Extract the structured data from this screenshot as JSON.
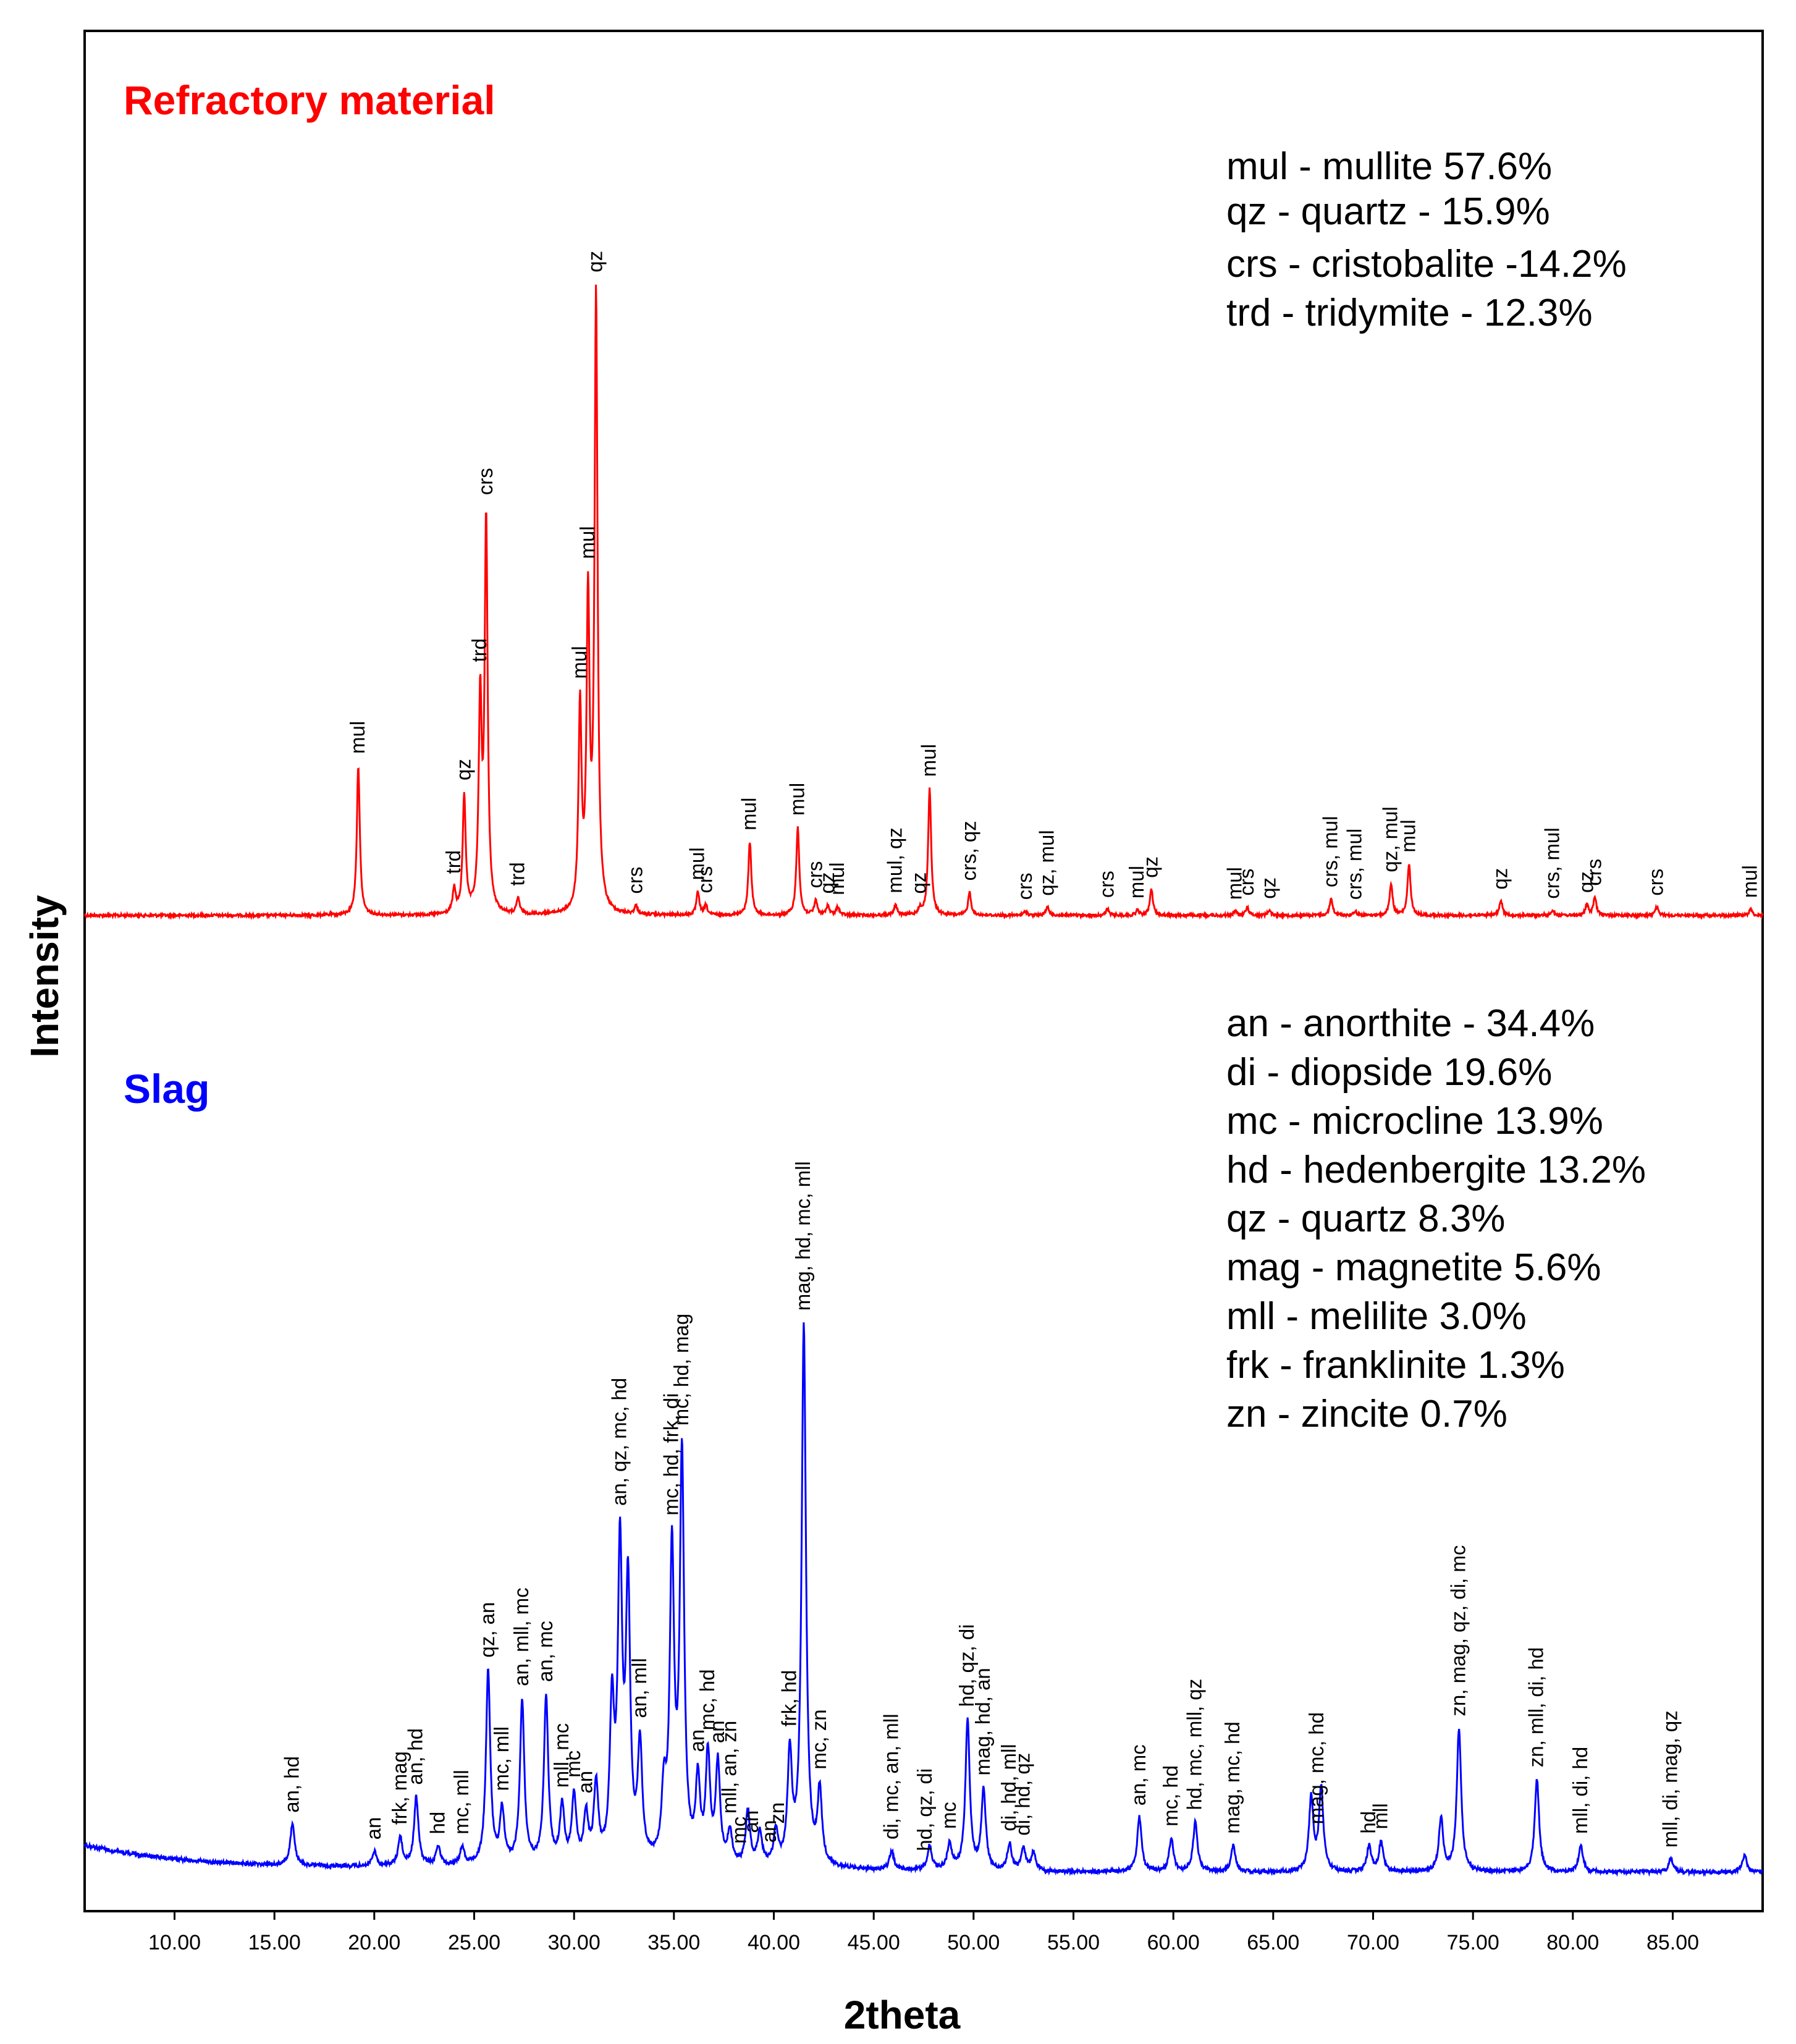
{
  "chart_data": {
    "type": "line",
    "xlabel": "2theta",
    "ylabel": "Intensity",
    "xlim": [
      5.5,
      89.5
    ],
    "x_ticks": [
      "10.00",
      "15.00",
      "20.00",
      "25.00",
      "30.00",
      "35.00",
      "40.00",
      "45.00",
      "50.00",
      "55.00",
      "60.00",
      "65.00",
      "70.00",
      "75.00",
      "80.00",
      "85.00"
    ],
    "panels": [
      {
        "title": "Refractory material",
        "color": "#ff0000",
        "baseline": 5,
        "legend": [
          "mul - mullite 57.6%",
          "qz - quartz - 15.9%",
          "crs - cristobalite -14.2%",
          "trd - tridymite - 12.3%"
        ],
        "series": [
          {
            "name": "Refractory material",
            "peaks": [
              [
                19.2,
                143
              ],
              [
                24.0,
                23
              ],
              [
                24.5,
                112
              ],
              [
                25.3,
                198
              ],
              [
                25.6,
                372
              ],
              [
                27.2,
                15
              ],
              [
                30.3,
                193
              ],
              [
                30.7,
                291
              ],
              [
                31.1,
                585
              ],
              [
                33.1,
                8
              ],
              [
                36.2,
                22
              ],
              [
                36.6,
                9
              ],
              [
                38.8,
                70
              ],
              [
                41.2,
                84
              ],
              [
                42.1,
                14
              ],
              [
                42.7,
                9
              ],
              [
                43.2,
                8
              ],
              [
                46.1,
                10
              ],
              [
                47.3,
                6
              ],
              [
                47.8,
                121
              ],
              [
                49.8,
                22
              ],
              [
                52.6,
                4
              ],
              [
                53.7,
                8
              ],
              [
                56.7,
                6
              ],
              [
                58.2,
                5
              ],
              [
                58.9,
                25
              ],
              [
                63.1,
                4
              ],
              [
                63.7,
                8
              ],
              [
                64.8,
                5
              ],
              [
                67.9,
                16
              ],
              [
                69.1,
                4
              ],
              [
                70.9,
                30
              ],
              [
                71.8,
                49
              ],
              [
                76.4,
                14
              ],
              [
                79.0,
                5
              ],
              [
                80.7,
                10
              ],
              [
                81.1,
                17
              ],
              [
                84.2,
                8
              ],
              [
                88.9,
                6
              ]
            ],
            "labels": [
              [
                "19.2",
                "mul"
              ],
              [
                "24.0",
                "trd"
              ],
              [
                "24.5",
                "qz"
              ],
              [
                "25.3",
                "trd"
              ],
              [
                "25.6",
                "crs"
              ],
              [
                "27.2",
                "trd"
              ],
              [
                "30.3",
                "mul"
              ],
              [
                "30.7",
                "mul"
              ],
              [
                "31.1",
                "qz"
              ],
              [
                "33.1",
                "crs"
              ],
              [
                "36.2",
                "mul"
              ],
              [
                "36.6",
                "crs"
              ],
              [
                "38.8",
                "mul"
              ],
              [
                "41.2",
                "mul"
              ],
              [
                "42.1",
                "crs"
              ],
              [
                "42.7",
                "qz"
              ],
              [
                "43.2",
                "mul"
              ],
              [
                "46.1",
                "mul, qz"
              ],
              [
                "47.3",
                "qz"
              ],
              [
                "47.8",
                "mul"
              ],
              [
                "49.8",
                "crs, qz"
              ],
              [
                "52.6",
                "crs"
              ],
              [
                "53.7",
                "qz, mul"
              ],
              [
                "56.7",
                "crs"
              ],
              [
                "58.2",
                "mul"
              ],
              [
                "58.9",
                "qz"
              ],
              [
                "63.1",
                "mul"
              ],
              [
                "63.7",
                "crs"
              ],
              [
                "64.8",
                "qz"
              ],
              [
                "67.9",
                "crs, mul"
              ],
              [
                "69.1",
                "crs, mul"
              ],
              [
                "70.9",
                "qz, mul"
              ],
              [
                "71.8",
                "mul"
              ],
              [
                "76.4",
                "qz"
              ],
              [
                "79.0",
                "crs, mul"
              ],
              [
                "80.7",
                "qz"
              ],
              [
                "81.1",
                "crs"
              ],
              [
                "84.2",
                "crs"
              ],
              [
                "88.9",
                "mul"
              ]
            ]
          }
        ]
      },
      {
        "title": "Slag",
        "color": "#0000ff",
        "baseline": 0,
        "legend": [
          "an - anorthite - 34.4%",
          "di - diopside 19.6%",
          "mc - microcline 13.9%",
          "hd - hedenbergite 13.2%",
          "qz - quartz 8.3%",
          "mag - magnetite 5.6%",
          "mll - melilite 3.0%",
          "frk - franklinite 1.3%",
          "zn - zincite 0.7%"
        ],
        "series": [
          {
            "name": "Slag",
            "peaks": [
              [
                15.9,
                62
              ],
              [
                20.0,
                22
              ],
              [
                21.3,
                42
              ],
              [
                22.1,
                103
              ],
              [
                23.2,
                28
              ],
              [
                24.4,
                26
              ],
              [
                25.7,
                290
              ],
              [
                26.4,
                80
              ],
              [
                27.4,
                245
              ],
              [
                28.6,
                250
              ],
              [
                29.4,
                84
              ],
              [
                30.0,
                100
              ],
              [
                30.6,
                70
              ],
              [
                31.1,
                115
              ],
              [
                31.9,
                225
              ],
              [
                32.3,
                455
              ],
              [
                32.7,
                405
              ],
              [
                33.3,
                170
              ],
              [
                34.5,
                98
              ],
              [
                34.9,
                455
              ],
              [
                35.4,
                605
              ],
              [
                36.2,
                120
              ],
              [
                36.7,
                160
              ],
              [
                37.2,
                148
              ],
              [
                37.8,
                48
              ],
              [
                38.7,
                80
              ],
              [
                39.3,
                50
              ],
              [
                40.1,
                50
              ],
              [
                40.8,
                165
              ],
              [
                41.5,
                810
              ],
              [
                42.3,
                110
              ],
              [
                45.9,
                28
              ],
              [
                47.8,
                36
              ],
              [
                48.8,
                40
              ],
              [
                49.7,
                225
              ],
              [
                50.5,
                120
              ],
              [
                51.8,
                40
              ],
              [
                52.5,
                33
              ],
              [
                53.0,
                28
              ],
              [
                58.3,
                82
              ],
              [
                59.9,
                50
              ],
              [
                61.1,
                75
              ],
              [
                63.0,
                40
              ],
              [
                66.9,
                110
              ],
              [
                67.4,
                125
              ],
              [
                69.8,
                38
              ],
              [
                70.4,
                45
              ],
              [
                73.4,
                80
              ],
              [
                74.3,
                215
              ],
              [
                78.2,
                140
              ],
              [
                80.4,
                40
              ],
              [
                84.9,
                20
              ],
              [
                88.6,
                25
              ]
            ],
            "labels": [
              [
                "15.9",
                "an, hd"
              ],
              [
                "20.0",
                "an"
              ],
              [
                "21.3",
                "frk, mag"
              ],
              [
                "22.1",
                "an, hd"
              ],
              [
                "23.2",
                "hd"
              ],
              [
                "24.4",
                "mc, mll"
              ],
              [
                "25.7",
                "qz, an"
              ],
              [
                "26.4",
                "mc, mll"
              ],
              [
                "27.4",
                "an, mll, mc"
              ],
              [
                "28.6",
                "an, mc"
              ],
              [
                "29.4",
                "mll, mc"
              ],
              [
                "30.0",
                "mc"
              ],
              [
                "30.6",
                "an"
              ],
              [
                "32.3",
                "an, qz, mc, hd"
              ],
              [
                "34.9",
                "mc, hd, frk, di"
              ],
              [
                "35.4",
                "mc, hd, mag"
              ],
              [
                "33.3",
                "an, mll"
              ],
              [
                "36.2",
                "an"
              ],
              [
                "36.7",
                "mc, hd"
              ],
              [
                "37.2",
                "an"
              ],
              [
                "37.8",
                "mll, an, zn"
              ],
              [
                "38.3",
                "mc"
              ],
              [
                "38.9",
                "an"
              ],
              [
                "39.8",
                "an"
              ],
              [
                "40.2",
                "zn"
              ],
              [
                "40.8",
                "frk, hd"
              ],
              [
                "41.5",
                "mag, hd, mc, mll"
              ],
              [
                "42.3",
                "mc, zn"
              ],
              [
                "45.9",
                "di, mc, an, mll"
              ],
              [
                "47.6",
                "hd, qz, di"
              ],
              [
                "48.8",
                "mc"
              ],
              [
                "49.7",
                "hd, qz, di"
              ],
              [
                "50.5",
                "mag, hd, an"
              ],
              [
                "51.8",
                "di, hd, mll"
              ],
              [
                "52.5",
                "di, hd, qz"
              ],
              [
                "58.3",
                "an, mc"
              ],
              [
                "59.9",
                "mc, hd"
              ],
              [
                "61.1",
                "hd, mc, mll, qz"
              ],
              [
                "63.0",
                "mag, mc, hd"
              ],
              [
                "67.2",
                "mag, mc, hd"
              ],
              [
                "69.8",
                "hd"
              ],
              [
                "70.4",
                "mll"
              ],
              [
                "74.3",
                "zn, mag, qz, di, mc"
              ],
              [
                "78.2",
                "zn, mll, di, hd"
              ],
              [
                "80.4",
                "mll, di, hd"
              ],
              [
                "84.9",
                "mll, di, mag, qz"
              ]
            ]
          }
        ]
      }
    ]
  }
}
